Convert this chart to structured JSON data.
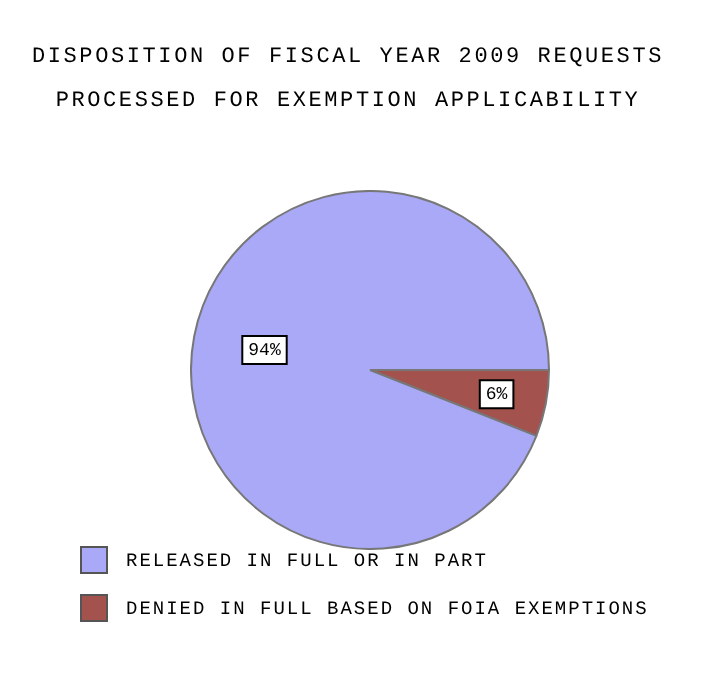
{
  "chart_data": {
    "type": "pie",
    "title": "DISPOSITION OF FISCAL YEAR 2009 REQUESTS PROCESSED FOR EXEMPTION APPLICABILITY",
    "categories": [
      "RELEASED IN FULL OR IN PART",
      "DENIED IN FULL BASED ON FOIA EXEMPTIONS"
    ],
    "values": [
      94,
      6
    ],
    "value_labels": [
      "94%",
      "6%"
    ],
    "colors": [
      "#a9a9f7",
      "#a3524e"
    ],
    "legend": "bottom"
  }
}
